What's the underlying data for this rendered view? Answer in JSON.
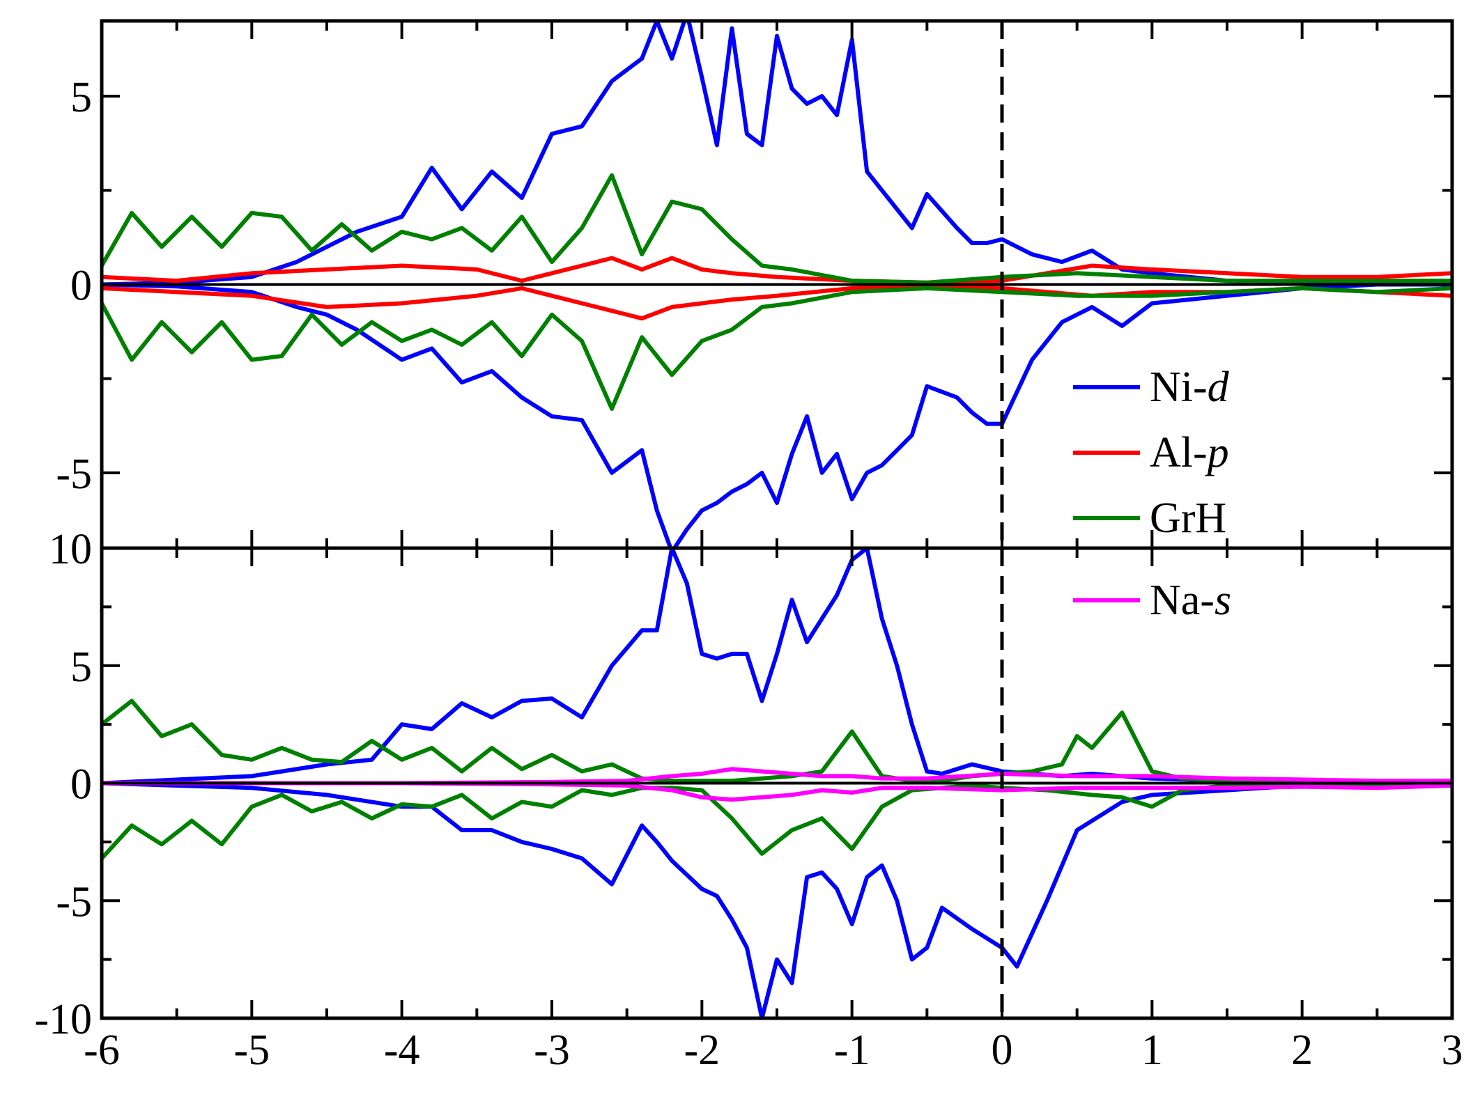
{
  "chart_data": {
    "type": "line",
    "xlim": [
      -6,
      3
    ],
    "x_ticks": [
      "-6",
      "-5",
      "-4",
      "-3",
      "-2",
      "-1",
      "0",
      "1",
      "2",
      "3"
    ],
    "fermi_level_x": 0,
    "zero_line": true,
    "grid": false,
    "legend": {
      "placement": "right",
      "entries": [
        {
          "label": "Ni-",
          "italic": "d",
          "color": "#0000ff"
        },
        {
          "label": "Al-",
          "italic": "p",
          "color": "#ff0000"
        },
        {
          "label": "GrH",
          "italic": "",
          "color": "#008000"
        },
        {
          "label": "Na-",
          "italic": "s",
          "color": "#ff00ff"
        }
      ]
    },
    "panels": [
      {
        "ylim": [
          -7,
          7
        ],
        "y_ticks": [
          "5",
          "0",
          "-5"
        ],
        "y_tick_values": [
          5,
          0,
          -5
        ],
        "series": [
          {
            "name": "Ni-d",
            "color": "#0000ff",
            "x": [
              -6.0,
              -5.5,
              -5.0,
              -4.7,
              -4.5,
              -4.3,
              -4.0,
              -3.8,
              -3.6,
              -3.4,
              -3.2,
              -3.0,
              -2.8,
              -2.6,
              -2.4,
              -2.3,
              -2.2,
              -2.1,
              -2.0,
              -1.9,
              -1.8,
              -1.7,
              -1.6,
              -1.5,
              -1.4,
              -1.3,
              -1.2,
              -1.1,
              -1.0,
              -0.9,
              -0.8,
              -0.6,
              -0.5,
              -0.3,
              -0.2,
              -0.1,
              0.0,
              0.2,
              0.4,
              0.6,
              0.8,
              1.0,
              1.5,
              2.0,
              2.5,
              3.0
            ],
            "y": [
              0.0,
              0.05,
              0.2,
              0.6,
              1.0,
              1.4,
              1.8,
              3.1,
              2.0,
              3.0,
              2.3,
              4.0,
              4.2,
              5.4,
              6.0,
              7.0,
              6.0,
              7.2,
              5.5,
              3.7,
              6.8,
              4.0,
              3.7,
              6.6,
              5.2,
              4.8,
              5.0,
              4.5,
              6.5,
              3.0,
              2.5,
              1.5,
              2.4,
              1.5,
              1.1,
              1.1,
              1.2,
              0.8,
              0.6,
              0.9,
              0.4,
              0.3,
              0.1,
              0.05,
              0.0,
              0.0
            ]
          },
          {
            "name": "Ni-d",
            "color": "#0000ff",
            "x": [
              -6.0,
              -5.5,
              -5.0,
              -4.7,
              -4.5,
              -4.3,
              -4.0,
              -3.8,
              -3.6,
              -3.4,
              -3.2,
              -3.0,
              -2.8,
              -2.6,
              -2.4,
              -2.3,
              -2.2,
              -2.1,
              -2.0,
              -1.9,
              -1.8,
              -1.7,
              -1.6,
              -1.5,
              -1.4,
              -1.3,
              -1.2,
              -1.1,
              -1.0,
              -0.9,
              -0.8,
              -0.6,
              -0.5,
              -0.3,
              -0.2,
              -0.1,
              0.0,
              0.2,
              0.4,
              0.6,
              0.8,
              1.0,
              1.5,
              2.0,
              2.5,
              3.0
            ],
            "y": [
              0.0,
              -0.05,
              -0.2,
              -0.6,
              -0.8,
              -1.2,
              -2.0,
              -1.7,
              -2.6,
              -2.3,
              -3.0,
              -3.5,
              -3.6,
              -5.0,
              -4.4,
              -6.0,
              -7.1,
              -6.5,
              -6.0,
              -5.8,
              -5.5,
              -5.3,
              -5.0,
              -5.8,
              -4.5,
              -3.5,
              -5.0,
              -4.5,
              -5.7,
              -5.0,
              -4.8,
              -4.0,
              -2.7,
              -3.0,
              -3.4,
              -3.7,
              -3.7,
              -2.0,
              -1.0,
              -0.6,
              -1.1,
              -0.5,
              -0.3,
              -0.1,
              0.0,
              0.0
            ]
          },
          {
            "name": "Al-p",
            "color": "#ff0000",
            "x": [
              -6.0,
              -5.5,
              -5.0,
              -4.5,
              -4.0,
              -3.5,
              -3.2,
              -3.0,
              -2.8,
              -2.6,
              -2.4,
              -2.2,
              -2.0,
              -1.8,
              -1.5,
              -1.0,
              -0.5,
              0.0,
              0.3,
              0.6,
              1.0,
              1.5,
              2.0,
              2.5,
              3.0
            ],
            "y": [
              0.2,
              0.1,
              0.3,
              0.4,
              0.5,
              0.4,
              0.1,
              0.3,
              0.5,
              0.7,
              0.4,
              0.7,
              0.4,
              0.3,
              0.2,
              0.1,
              0.05,
              0.1,
              0.3,
              0.5,
              0.4,
              0.3,
              0.2,
              0.2,
              0.3
            ]
          },
          {
            "name": "Al-p",
            "color": "#ff0000",
            "x": [
              -6.0,
              -5.5,
              -5.0,
              -4.5,
              -4.0,
              -3.5,
              -3.2,
              -3.0,
              -2.8,
              -2.6,
              -2.4,
              -2.2,
              -2.0,
              -1.8,
              -1.5,
              -1.0,
              -0.5,
              0.0,
              0.3,
              0.6,
              1.0,
              1.5,
              2.0,
              2.5,
              3.0
            ],
            "y": [
              -0.1,
              -0.2,
              -0.3,
              -0.6,
              -0.5,
              -0.3,
              -0.1,
              -0.3,
              -0.5,
              -0.7,
              -0.9,
              -0.6,
              -0.5,
              -0.4,
              -0.3,
              -0.1,
              -0.05,
              -0.1,
              -0.2,
              -0.3,
              -0.2,
              -0.2,
              -0.1,
              -0.2,
              -0.3
            ]
          },
          {
            "name": "GrH",
            "color": "#008000",
            "x": [
              -6.0,
              -5.8,
              -5.6,
              -5.4,
              -5.2,
              -5.0,
              -4.8,
              -4.6,
              -4.4,
              -4.2,
              -4.0,
              -3.8,
              -3.6,
              -3.4,
              -3.2,
              -3.0,
              -2.8,
              -2.6,
              -2.4,
              -2.2,
              -2.0,
              -1.8,
              -1.6,
              -1.4,
              -1.0,
              -0.5,
              0.0,
              0.5,
              1.0,
              1.5,
              2.0,
              2.5,
              3.0
            ],
            "y": [
              0.5,
              1.9,
              1.0,
              1.8,
              1.0,
              1.9,
              1.8,
              0.9,
              1.6,
              0.9,
              1.4,
              1.2,
              1.5,
              0.9,
              1.8,
              0.6,
              1.5,
              2.9,
              0.8,
              2.2,
              2.0,
              1.2,
              0.5,
              0.4,
              0.1,
              0.05,
              0.2,
              0.3,
              0.2,
              0.1,
              0.1,
              0.1,
              0.1
            ]
          },
          {
            "name": "GrH",
            "color": "#008000",
            "x": [
              -6.0,
              -5.8,
              -5.6,
              -5.4,
              -5.2,
              -5.0,
              -4.8,
              -4.6,
              -4.4,
              -4.2,
              -4.0,
              -3.8,
              -3.6,
              -3.4,
              -3.2,
              -3.0,
              -2.8,
              -2.6,
              -2.4,
              -2.2,
              -2.0,
              -1.8,
              -1.6,
              -1.4,
              -1.0,
              -0.5,
              0.0,
              0.5,
              1.0,
              1.5,
              2.0,
              2.5,
              3.0
            ],
            "y": [
              -0.5,
              -2.0,
              -1.0,
              -1.8,
              -1.0,
              -2.0,
              -1.9,
              -0.8,
              -1.6,
              -1.0,
              -1.5,
              -1.2,
              -1.6,
              -1.0,
              -1.9,
              -0.8,
              -1.5,
              -3.3,
              -1.4,
              -2.4,
              -1.5,
              -1.2,
              -0.6,
              -0.5,
              -0.2,
              -0.1,
              -0.2,
              -0.3,
              -0.3,
              -0.2,
              -0.1,
              -0.2,
              -0.1
            ]
          }
        ]
      },
      {
        "ylim": [
          -10,
          10
        ],
        "y_ticks": [
          "10",
          "5",
          "0",
          "-5",
          "-10"
        ],
        "y_tick_values": [
          10,
          5,
          0,
          -5,
          -10
        ],
        "series": [
          {
            "name": "Ni-d",
            "color": "#0000ff",
            "x": [
              -6.0,
              -5.0,
              -4.5,
              -4.2,
              -4.0,
              -3.8,
              -3.6,
              -3.4,
              -3.2,
              -3.0,
              -2.8,
              -2.6,
              -2.4,
              -2.3,
              -2.2,
              -2.1,
              -2.0,
              -1.9,
              -1.8,
              -1.7,
              -1.6,
              -1.5,
              -1.4,
              -1.3,
              -1.2,
              -1.1,
              -1.0,
              -0.9,
              -0.8,
              -0.7,
              -0.6,
              -0.5,
              -0.4,
              -0.2,
              0.0,
              0.2,
              0.4,
              0.6,
              1.0,
              1.5,
              2.0,
              3.0
            ],
            "y": [
              0.0,
              0.3,
              0.8,
              1.0,
              2.5,
              2.3,
              3.4,
              2.8,
              3.5,
              3.6,
              2.8,
              5.0,
              6.5,
              6.5,
              10.0,
              8.5,
              5.5,
              5.3,
              5.5,
              5.5,
              3.5,
              5.5,
              7.8,
              6.0,
              7.0,
              8.0,
              9.5,
              10.0,
              7.0,
              5.0,
              2.5,
              0.5,
              0.4,
              0.8,
              0.5,
              0.4,
              0.3,
              0.4,
              0.2,
              0.1,
              0.05,
              0.0
            ]
          },
          {
            "name": "Ni-d",
            "color": "#0000ff",
            "x": [
              -6.0,
              -5.0,
              -4.5,
              -4.0,
              -3.8,
              -3.6,
              -3.4,
              -3.2,
              -3.0,
              -2.8,
              -2.6,
              -2.4,
              -2.3,
              -2.2,
              -2.0,
              -1.9,
              -1.8,
              -1.7,
              -1.6,
              -1.5,
              -1.4,
              -1.3,
              -1.2,
              -1.1,
              -1.0,
              -0.9,
              -0.8,
              -0.7,
              -0.6,
              -0.5,
              -0.4,
              -0.2,
              0.0,
              0.1,
              0.3,
              0.5,
              0.8,
              1.0,
              1.5,
              2.0,
              3.0
            ],
            "y": [
              0.0,
              -0.2,
              -0.5,
              -1.0,
              -1.0,
              -2.0,
              -2.0,
              -2.5,
              -2.8,
              -3.2,
              -4.3,
              -1.8,
              -2.5,
              -3.3,
              -4.5,
              -4.8,
              -5.8,
              -7.0,
              -10.0,
              -7.5,
              -8.5,
              -4.0,
              -3.8,
              -4.5,
              -6.0,
              -4.0,
              -3.5,
              -5.0,
              -7.5,
              -7.0,
              -5.3,
              -6.2,
              -7.0,
              -7.8,
              -5.0,
              -2.0,
              -0.8,
              -0.5,
              -0.3,
              -0.1,
              0.0
            ]
          },
          {
            "name": "GrH",
            "color": "#008000",
            "x": [
              -6.0,
              -5.8,
              -5.6,
              -5.4,
              -5.2,
              -5.0,
              -4.8,
              -4.6,
              -4.4,
              -4.2,
              -4.0,
              -3.8,
              -3.6,
              -3.4,
              -3.2,
              -3.0,
              -2.8,
              -2.6,
              -2.4,
              -2.2,
              -2.0,
              -1.8,
              -1.6,
              -1.4,
              -1.2,
              -1.0,
              -0.8,
              -0.6,
              -0.4,
              -0.2,
              0.0,
              0.2,
              0.4,
              0.5,
              0.6,
              0.8,
              1.0,
              1.2,
              1.5,
              2.0,
              3.0
            ],
            "y": [
              2.5,
              3.5,
              2.0,
              2.5,
              1.2,
              1.0,
              1.5,
              1.0,
              0.9,
              1.8,
              1.0,
              1.5,
              0.5,
              1.5,
              0.6,
              1.2,
              0.5,
              0.8,
              0.2,
              0.1,
              0.1,
              0.1,
              0.2,
              0.3,
              0.5,
              2.2,
              0.3,
              0.1,
              0.1,
              0.3,
              0.4,
              0.5,
              0.8,
              2.0,
              1.5,
              3.0,
              0.5,
              0.2,
              0.1,
              0.05,
              0.0
            ]
          },
          {
            "name": "GrH",
            "color": "#008000",
            "x": [
              -6.0,
              -5.8,
              -5.6,
              -5.4,
              -5.2,
              -5.0,
              -4.8,
              -4.6,
              -4.4,
              -4.2,
              -4.0,
              -3.8,
              -3.6,
              -3.4,
              -3.2,
              -3.0,
              -2.8,
              -2.6,
              -2.4,
              -2.2,
              -2.0,
              -1.8,
              -1.6,
              -1.4,
              -1.2,
              -1.0,
              -0.8,
              -0.6,
              -0.4,
              -0.2,
              0.0,
              0.3,
              0.6,
              0.8,
              1.0,
              1.2,
              1.5,
              2.0,
              3.0
            ],
            "y": [
              -3.2,
              -1.8,
              -2.6,
              -1.6,
              -2.6,
              -1.0,
              -0.5,
              -1.2,
              -0.8,
              -1.5,
              -0.9,
              -1.0,
              -0.5,
              -1.5,
              -0.8,
              -1.0,
              -0.3,
              -0.5,
              -0.2,
              -0.2,
              -0.3,
              -1.5,
              -3.0,
              -2.0,
              -1.5,
              -2.8,
              -1.0,
              -0.3,
              -0.2,
              -0.1,
              -0.2,
              -0.3,
              -0.5,
              -0.6,
              -1.0,
              -0.3,
              -0.1,
              -0.05,
              0.0
            ]
          },
          {
            "name": "Na-s",
            "color": "#ff00ff",
            "x": [
              -6.0,
              -4.0,
              -3.0,
              -2.5,
              -2.2,
              -2.0,
              -1.8,
              -1.6,
              -1.4,
              -1.2,
              -1.0,
              -0.8,
              -0.5,
              0.0,
              0.5,
              1.0,
              1.5,
              2.0,
              2.5,
              3.0
            ],
            "y": [
              0.0,
              0.0,
              0.05,
              0.1,
              0.3,
              0.4,
              0.6,
              0.5,
              0.4,
              0.3,
              0.3,
              0.2,
              0.2,
              0.4,
              0.3,
              0.3,
              0.2,
              0.15,
              0.1,
              0.1
            ]
          },
          {
            "name": "Na-s",
            "color": "#ff00ff",
            "x": [
              -6.0,
              -4.0,
              -3.0,
              -2.5,
              -2.2,
              -2.0,
              -1.8,
              -1.6,
              -1.4,
              -1.2,
              -1.0,
              -0.8,
              -0.5,
              0.0,
              0.5,
              1.0,
              1.5,
              2.0,
              2.5,
              3.0
            ],
            "y": [
              0.0,
              0.0,
              -0.05,
              -0.1,
              -0.3,
              -0.6,
              -0.7,
              -0.6,
              -0.5,
              -0.3,
              -0.4,
              -0.2,
              -0.2,
              -0.3,
              -0.2,
              -0.2,
              -0.2,
              -0.15,
              -0.2,
              -0.1
            ]
          }
        ]
      }
    ]
  }
}
